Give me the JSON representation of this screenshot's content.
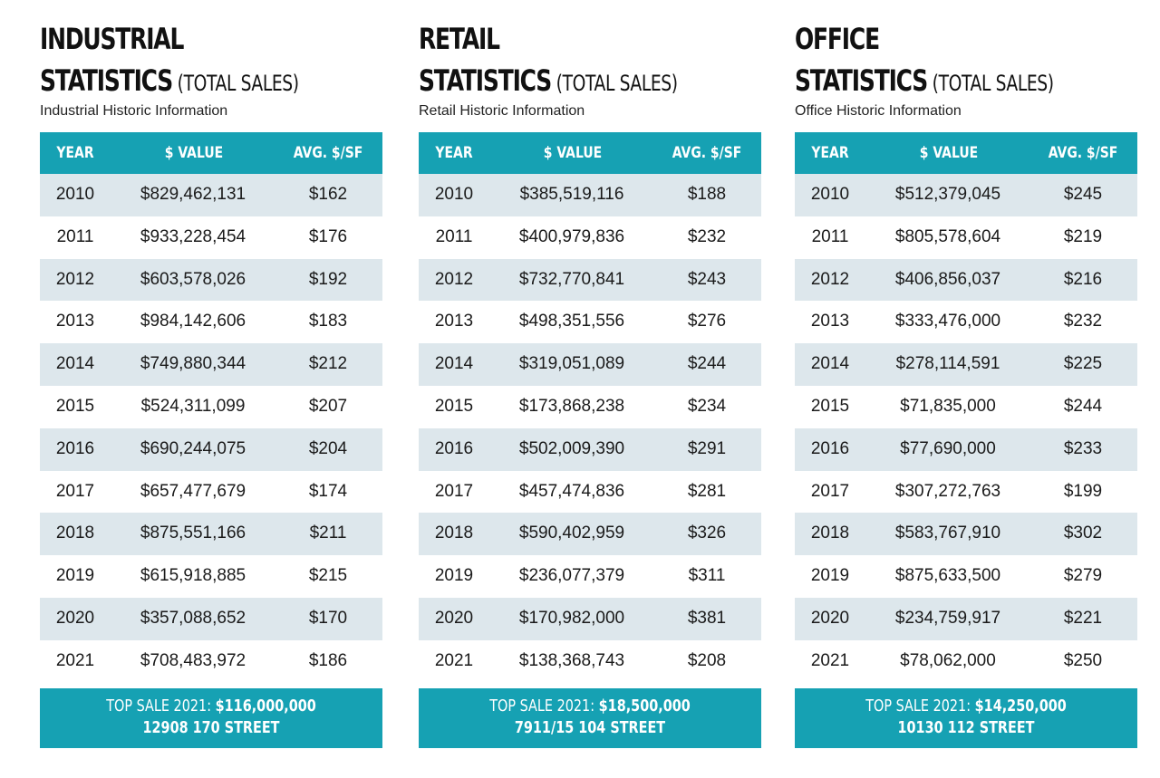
{
  "header_labels": {
    "year": "YEAR",
    "value": "$ VALUE",
    "avg": "AVG. $/SF"
  },
  "panels": [
    {
      "title_line1": "INDUSTRIAL",
      "title_line2": "STATISTICS",
      "title_suffix": " (TOTAL SALES)",
      "subtitle": "Industrial Historic Information",
      "rows": [
        {
          "year": "2010",
          "value": "$829,462,131",
          "avg": "$162"
        },
        {
          "year": "2011",
          "value": "$933,228,454",
          "avg": "$176"
        },
        {
          "year": "2012",
          "value": "$603,578,026",
          "avg": "$192"
        },
        {
          "year": "2013",
          "value": "$984,142,606",
          "avg": "$183"
        },
        {
          "year": "2014",
          "value": "$749,880,344",
          "avg": "$212"
        },
        {
          "year": "2015",
          "value": "$524,311,099",
          "avg": "$207"
        },
        {
          "year": "2016",
          "value": "$690,244,075",
          "avg": "$204"
        },
        {
          "year": "2017",
          "value": "$657,477,679",
          "avg": "$174"
        },
        {
          "year": "2018",
          "value": "$875,551,166",
          "avg": "$211"
        },
        {
          "year": "2019",
          "value": "$615,918,885",
          "avg": "$215"
        },
        {
          "year": "2020",
          "value": "$357,088,652",
          "avg": "$170"
        },
        {
          "year": "2021",
          "value": "$708,483,972",
          "avg": "$186"
        }
      ],
      "top_sale_label": "TOP SALE 2021: ",
      "top_sale_amount": "$116,000,000",
      "top_sale_address": "12908 170 STREET"
    },
    {
      "title_line1": "RETAIL",
      "title_line2": "STATISTICS",
      "title_suffix": " (TOTAL SALES)",
      "subtitle": "Retail Historic Information",
      "rows": [
        {
          "year": "2010",
          "value": "$385,519,116",
          "avg": "$188"
        },
        {
          "year": "2011",
          "value": "$400,979,836",
          "avg": "$232"
        },
        {
          "year": "2012",
          "value": "$732,770,841",
          "avg": "$243"
        },
        {
          "year": "2013",
          "value": "$498,351,556",
          "avg": "$276"
        },
        {
          "year": "2014",
          "value": "$319,051,089",
          "avg": "$244"
        },
        {
          "year": "2015",
          "value": "$173,868,238",
          "avg": "$234"
        },
        {
          "year": "2016",
          "value": "$502,009,390",
          "avg": "$291"
        },
        {
          "year": "2017",
          "value": "$457,474,836",
          "avg": "$281"
        },
        {
          "year": "2018",
          "value": "$590,402,959",
          "avg": "$326"
        },
        {
          "year": "2019",
          "value": "$236,077,379",
          "avg": "$311"
        },
        {
          "year": "2020",
          "value": "$170,982,000",
          "avg": "$381"
        },
        {
          "year": "2021",
          "value": "$138,368,743",
          "avg": "$208"
        }
      ],
      "top_sale_label": "TOP SALE 2021: ",
      "top_sale_amount": "$18,500,000",
      "top_sale_address": "7911/15 104 STREET"
    },
    {
      "title_line1": "OFFICE",
      "title_line2": "STATISTICS",
      "title_suffix": " (TOTAL SALES)",
      "subtitle": "Office Historic Information",
      "rows": [
        {
          "year": "2010",
          "value": "$512,379,045",
          "avg": "$245"
        },
        {
          "year": "2011",
          "value": "$805,578,604",
          "avg": "$219"
        },
        {
          "year": "2012",
          "value": "$406,856,037",
          "avg": "$216"
        },
        {
          "year": "2013",
          "value": "$333,476,000",
          "avg": "$232"
        },
        {
          "year": "2014",
          "value": "$278,114,591",
          "avg": "$225"
        },
        {
          "year": "2015",
          "value": "$71,835,000",
          "avg": "$244"
        },
        {
          "year": "2016",
          "value": "$77,690,000",
          "avg": "$233"
        },
        {
          "year": "2017",
          "value": "$307,272,763",
          "avg": "$199"
        },
        {
          "year": "2018",
          "value": "$583,767,910",
          "avg": "$302"
        },
        {
          "year": "2019",
          "value": "$875,633,500",
          "avg": "$279"
        },
        {
          "year": "2020",
          "value": "$234,759,917",
          "avg": "$221"
        },
        {
          "year": "2021",
          "value": "$78,062,000",
          "avg": "$250"
        }
      ],
      "top_sale_label": "TOP SALE 2021: ",
      "top_sale_amount": "$14,250,000",
      "top_sale_address": "10130 112 STREET"
    }
  ],
  "colors": {
    "accent": "#16a1b3",
    "row_shade": "#dde7ec"
  }
}
